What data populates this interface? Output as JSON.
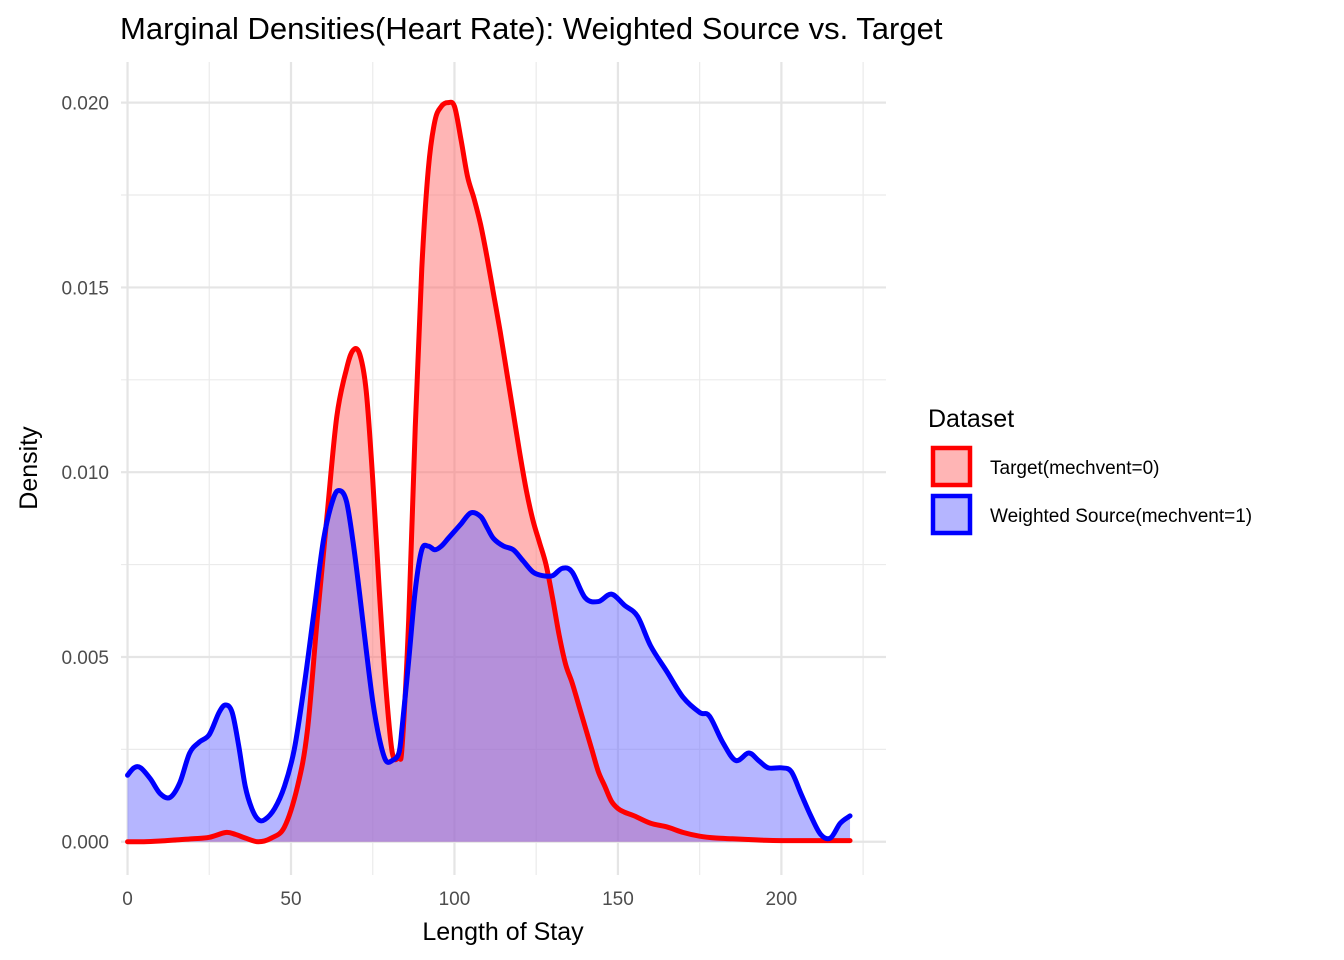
{
  "chart_data": {
    "type": "area",
    "title": "Marginal Densities(Heart Rate): Weighted Source vs. Target",
    "xlabel": "Length of Stay",
    "ylabel": "Density",
    "xlim": [
      -2,
      232
    ],
    "ylim": [
      -0.0009,
      0.0211
    ],
    "x_ticks": [
      0,
      50,
      100,
      150,
      200
    ],
    "x_tick_labels": [
      "0",
      "50",
      "100",
      "150",
      "200"
    ],
    "y_ticks": [
      0,
      0.005,
      0.01,
      0.015,
      0.02
    ],
    "y_tick_labels": [
      "0.000",
      "0.005",
      "0.010",
      "0.015",
      "0.020"
    ],
    "grid": true,
    "legend": {
      "title": "Dataset",
      "position": "right"
    },
    "series": [
      {
        "name": "Target(mechvent=0)",
        "color": "#ff0000",
        "fill": "#ff6b6b",
        "fill_opacity": 0.5,
        "x": [
          0,
          5,
          10,
          15,
          20,
          25,
          30,
          33,
          36,
          40,
          44,
          48,
          52,
          55,
          58,
          61,
          64,
          67,
          69,
          71,
          73,
          75,
          77,
          79,
          81,
          83,
          84,
          86,
          88,
          90,
          92,
          94,
          96,
          98,
          100,
          102,
          104,
          106,
          108,
          110,
          112,
          114,
          116,
          118,
          120,
          122,
          124,
          126,
          128,
          130,
          132,
          134,
          136,
          138,
          140,
          142,
          144,
          146,
          148,
          150,
          152,
          155,
          160,
          165,
          170,
          175,
          180,
          185,
          190,
          195,
          200,
          205,
          210,
          215,
          221
        ],
        "y": [
          0,
          0,
          2e-05,
          5e-05,
          8e-05,
          0.00012,
          0.00025,
          0.0002,
          0.0001,
          0,
          0.0001,
          0.0004,
          0.0015,
          0.003,
          0.006,
          0.0088,
          0.0115,
          0.0128,
          0.0133,
          0.0132,
          0.0122,
          0.0098,
          0.0068,
          0.0042,
          0.0024,
          0.0023,
          0.0026,
          0.006,
          0.0112,
          0.0155,
          0.0182,
          0.0195,
          0.0199,
          0.02,
          0.0199,
          0.019,
          0.018,
          0.0174,
          0.0167,
          0.0158,
          0.0148,
          0.0138,
          0.0127,
          0.0116,
          0.0105,
          0.0095,
          0.0087,
          0.0081,
          0.0075,
          0.0066,
          0.0056,
          0.0048,
          0.0043,
          0.0037,
          0.0031,
          0.0025,
          0.0019,
          0.0015,
          0.0011,
          0.0009,
          0.0008,
          0.0007,
          0.0005,
          0.0004,
          0.00025,
          0.00015,
          0.0001,
          8e-05,
          6e-05,
          4e-05,
          3e-05,
          3e-05,
          3e-05,
          3e-05,
          3e-05
        ]
      },
      {
        "name": "Weighted Source(mechvent=1)",
        "color": "#0000ff",
        "fill": "#6b6bff",
        "fill_opacity": 0.5,
        "x": [
          0,
          2,
          4,
          7,
          10,
          13,
          16,
          19,
          22,
          25,
          28,
          30,
          32,
          34,
          36,
          38,
          40,
          42,
          45,
          48,
          51,
          54,
          57,
          60,
          63,
          65,
          67,
          69,
          71,
          73,
          75,
          77,
          79,
          81,
          83,
          84,
          86,
          88,
          90,
          92,
          94,
          96,
          98,
          100,
          102,
          105,
          108,
          110,
          112,
          115,
          118,
          121,
          124,
          127,
          130,
          133,
          136,
          140,
          144,
          148,
          152,
          156,
          160,
          165,
          170,
          175,
          178,
          182,
          186,
          190,
          193,
          196,
          200,
          203,
          206,
          209,
          212,
          215,
          218,
          221
        ],
        "y": [
          0.0018,
          0.002,
          0.002,
          0.0017,
          0.0013,
          0.0012,
          0.0016,
          0.0024,
          0.0027,
          0.0029,
          0.0035,
          0.0037,
          0.0035,
          0.0026,
          0.0015,
          0.0009,
          0.0006,
          0.0006,
          0.0009,
          0.0015,
          0.0025,
          0.0042,
          0.0062,
          0.0082,
          0.0093,
          0.0095,
          0.0092,
          0.0081,
          0.0067,
          0.0052,
          0.0038,
          0.0028,
          0.0022,
          0.0022,
          0.0024,
          0.0031,
          0.0049,
          0.0068,
          0.0079,
          0.008,
          0.0079,
          0.008,
          0.0082,
          0.0084,
          0.0086,
          0.0089,
          0.0088,
          0.0085,
          0.0082,
          0.008,
          0.0079,
          0.0076,
          0.0073,
          0.0072,
          0.0072,
          0.0074,
          0.0073,
          0.0066,
          0.0065,
          0.0067,
          0.0064,
          0.0061,
          0.0053,
          0.0046,
          0.0039,
          0.0035,
          0.0034,
          0.0027,
          0.0022,
          0.0024,
          0.0022,
          0.002,
          0.002,
          0.0019,
          0.0013,
          0.0007,
          0.0002,
          0.0001,
          0.0005,
          0.0007
        ]
      }
    ]
  }
}
